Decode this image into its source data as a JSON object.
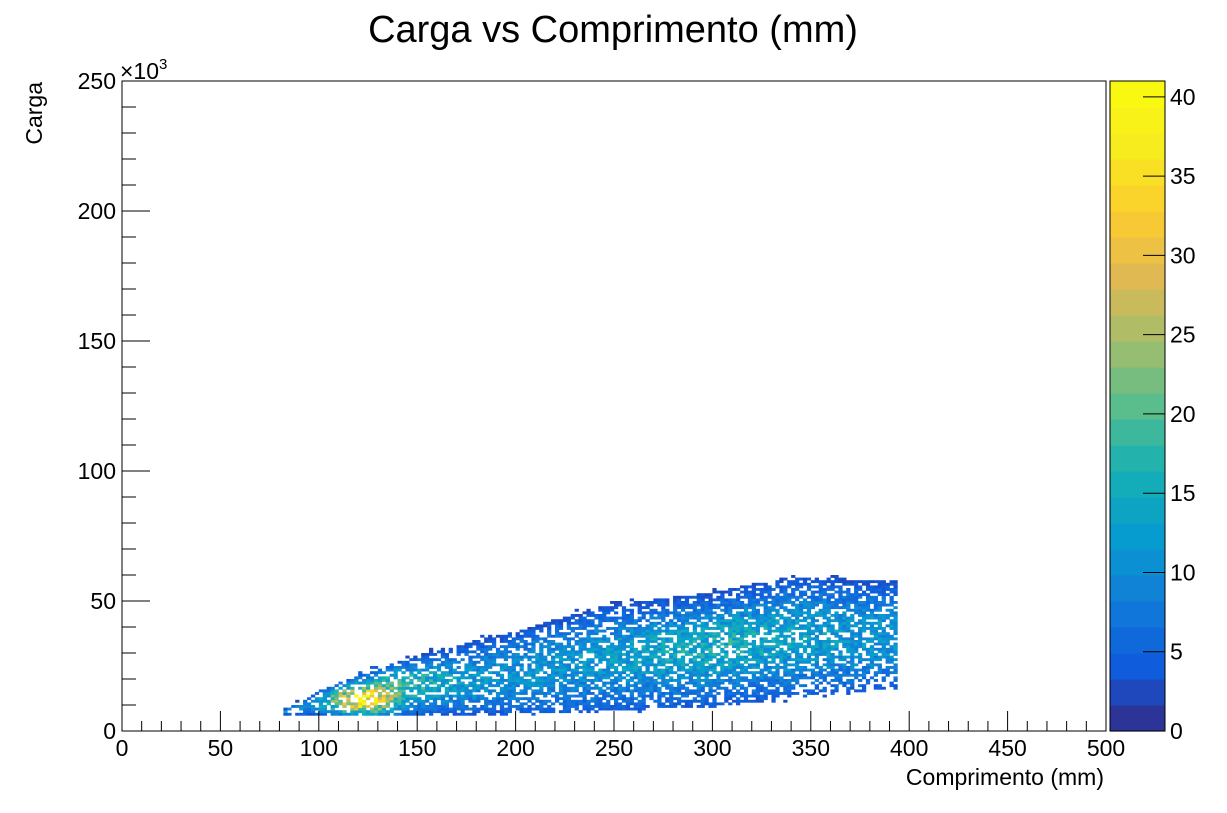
{
  "chart_data": {
    "type": "heatmap",
    "title": "Carga vs Comprimento (mm)",
    "xlabel": "Comprimento (mm)",
    "ylabel": "Carga",
    "xlim": [
      0,
      500
    ],
    "ylim": [
      0,
      250
    ],
    "y_multiplier": "×10",
    "y_multiplier_exp": "3",
    "x_ticks": [
      "0",
      "50",
      "100",
      "150",
      "200",
      "250",
      "300",
      "350",
      "400",
      "450",
      "500"
    ],
    "y_ticks": [
      "0",
      "50",
      "100",
      "150",
      "200",
      "250"
    ],
    "colorbar_ticks": [
      "0",
      "5",
      "10",
      "15",
      "20",
      "25",
      "30",
      "35",
      "40"
    ],
    "z_range": [
      0,
      41
    ],
    "colorscale": "parula",
    "data_extent": {
      "x_min": 82,
      "x_max": 394,
      "upper_edge": [
        [
          82,
          8
        ],
        [
          100,
          15
        ],
        [
          120,
          21
        ],
        [
          150,
          29
        ],
        [
          200,
          38
        ],
        [
          240,
          47
        ],
        [
          300,
          53
        ],
        [
          340,
          59
        ],
        [
          394,
          57
        ]
      ],
      "lower_edge": [
        [
          82,
          6
        ],
        [
          200,
          6
        ],
        [
          300,
          9
        ],
        [
          350,
          13
        ],
        [
          394,
          16
        ]
      ],
      "hotspot": {
        "x": 122,
        "y": 11,
        "max_count": 34
      }
    }
  }
}
